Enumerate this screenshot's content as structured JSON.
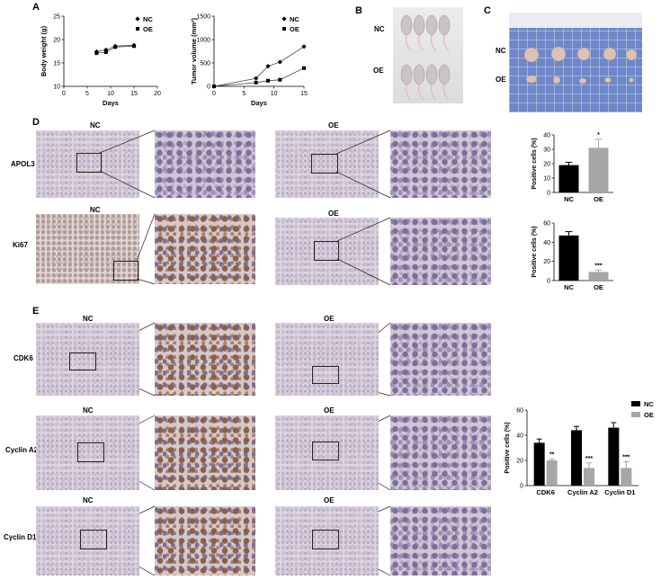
{
  "panels": {
    "A": "A",
    "B": "B",
    "C": "C",
    "D": "D",
    "E": "E"
  },
  "groups": {
    "nc": "NC",
    "oe": "OE"
  },
  "rows_D": [
    "APOL3",
    "Ki67"
  ],
  "rows_E": [
    "CDK6",
    "Cyclin A2",
    "Cyclin D1"
  ],
  "colors": {
    "nc": "#000000",
    "oe": "#a6a6a6"
  },
  "chart_data": [
    {
      "type": "line",
      "xlabel": "Days",
      "ylabel": "Body weight (g)",
      "xlim": [
        0,
        20
      ],
      "ylim": [
        10,
        25
      ],
      "xticks": [
        0,
        5,
        10,
        15,
        20
      ],
      "yticks": [
        10,
        15,
        20,
        25
      ],
      "series": [
        {
          "name": "NC",
          "marker": "diamond",
          "x": [
            7,
            9,
            11,
            15
          ],
          "y": [
            17.4,
            17.8,
            18.6,
            18.8
          ]
        },
        {
          "name": "OE",
          "marker": "square",
          "x": [
            7,
            9,
            11,
            15
          ],
          "y": [
            17.1,
            17.3,
            18.4,
            18.6
          ]
        }
      ],
      "legend": "top-right"
    },
    {
      "type": "line",
      "xlabel": "Days",
      "ylabel": "Tumor volume (mm³)",
      "xlim": [
        0,
        15
      ],
      "ylim": [
        0,
        1500
      ],
      "xticks": [
        0,
        5,
        10,
        15
      ],
      "yticks": [
        0,
        500,
        1000,
        1500
      ],
      "series": [
        {
          "name": "NC",
          "marker": "diamond",
          "x": [
            0,
            7,
            9,
            11,
            15
          ],
          "y": [
            0,
            170,
            430,
            520,
            850
          ]
        },
        {
          "name": "OE",
          "marker": "square",
          "x": [
            0,
            7,
            9,
            11,
            15
          ],
          "y": [
            0,
            80,
            120,
            140,
            390
          ]
        }
      ],
      "legend": "top-right"
    },
    {
      "type": "bar",
      "ylabel": "Positive cells (%)",
      "categories": [
        "NC",
        "OE"
      ],
      "values": [
        19,
        31
      ],
      "errors": [
        2,
        6
      ],
      "ylim": [
        0,
        40
      ],
      "yticks": [
        0,
        10,
        20,
        30,
        40
      ],
      "annotations": [
        "",
        "*"
      ]
    },
    {
      "type": "bar",
      "ylabel": "Positive cells (%)",
      "categories": [
        "NC",
        "OE"
      ],
      "values": [
        47,
        9
      ],
      "errors": [
        4,
        2
      ],
      "ylim": [
        0,
        60
      ],
      "yticks": [
        0,
        20,
        40,
        60
      ],
      "annotations": [
        "",
        "***"
      ]
    },
    {
      "type": "bar",
      "ylabel": "Positive cells (%)",
      "categories": [
        "CDK6",
        "Cyclin A2",
        "Cyclin D1"
      ],
      "series": [
        {
          "name": "NC",
          "values": [
            34,
            44,
            46
          ],
          "errors": [
            3,
            3,
            4
          ]
        },
        {
          "name": "OE",
          "values": [
            20,
            14,
            14
          ],
          "errors": [
            1,
            4,
            5
          ]
        }
      ],
      "annotations": [
        "**",
        "***",
        "***"
      ],
      "ylim": [
        0,
        60
      ],
      "yticks": [
        0,
        20,
        40,
        60
      ],
      "legend": "top-right"
    }
  ]
}
